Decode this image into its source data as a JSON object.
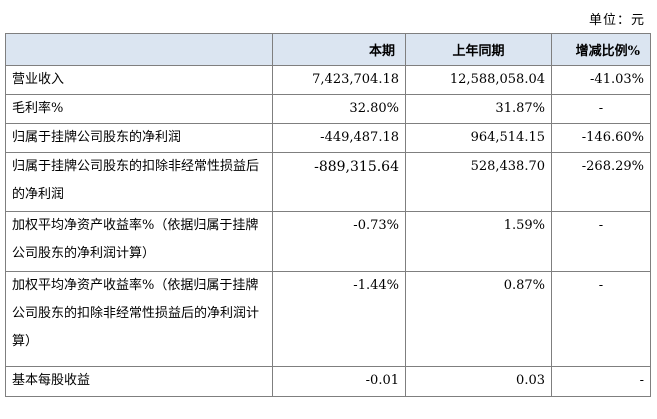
{
  "unit_label": "单位：元",
  "header": {
    "col_label": "",
    "col_current": "本期",
    "col_previous": "上年同期",
    "col_change": "增减比例%"
  },
  "rows": [
    {
      "label": "营业收入",
      "current": "7,423,704.18",
      "previous": "12,588,058.04",
      "change": "-41.03%"
    },
    {
      "label": "毛利率%",
      "current": "32.80%",
      "previous": "31.87%",
      "change": "-"
    },
    {
      "label": "归属于挂牌公司股东的净利润",
      "current": "-449,487.18",
      "previous": "964,514.15",
      "change": "-146.60%"
    },
    {
      "label": "归属于挂牌公司股东的扣除非经常性损益后的净利润",
      "current": "-889,315.64",
      "previous": "528,438.70",
      "change": "-268.29%"
    },
    {
      "label": "加权平均净资产收益率%（依据归属于挂牌公司股东的净利润计算）",
      "current": "-0.73%",
      "previous": "1.59%",
      "change": "-"
    },
    {
      "label": "加权平均净资产收益率%（依据归属于挂牌公司股东的扣除非经常性损益后的净利润计算）",
      "current": "-1.44%",
      "previous": "0.87%",
      "change": "-"
    },
    {
      "label": "基本每股收益",
      "current": "-0.01",
      "previous": "0.03",
      "change": "-"
    }
  ]
}
